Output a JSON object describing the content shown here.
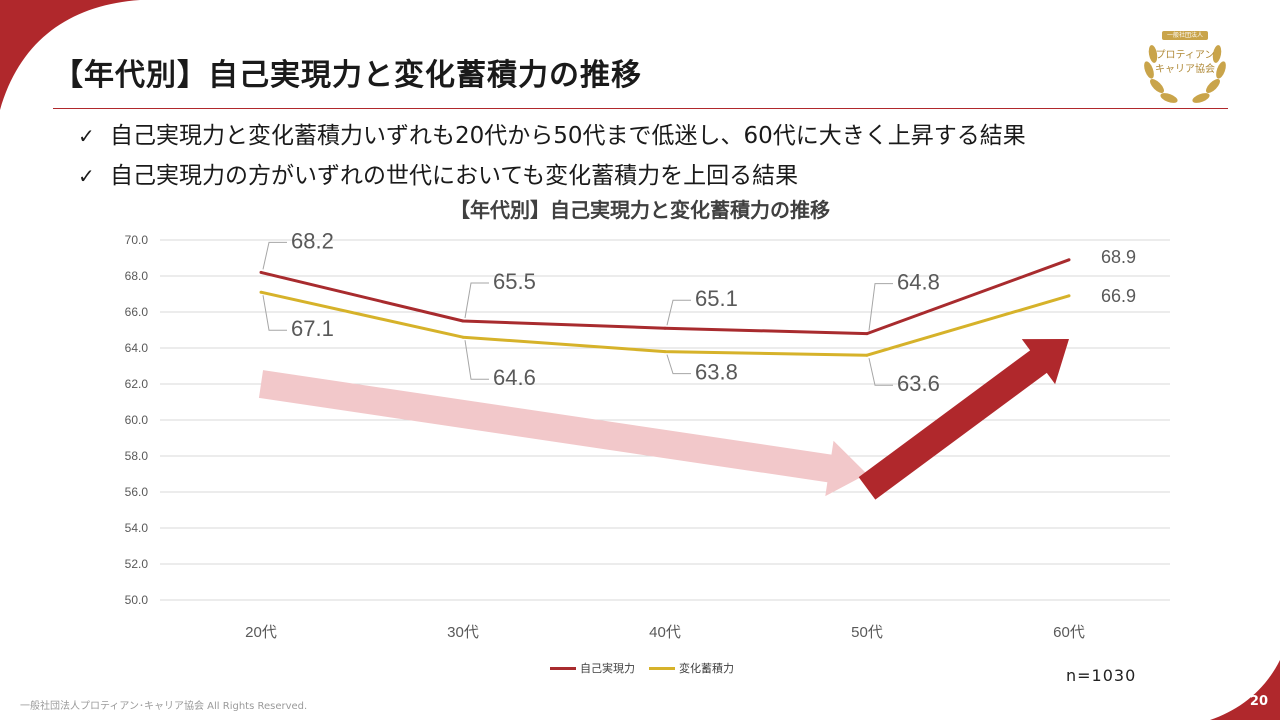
{
  "slide": {
    "title": "【年代別】自己実現力と変化蓄積力の推移",
    "bullets": [
      "自己実現力と変化蓄積力いずれも20代から50代まで低迷し、60代に大きく上昇する結果",
      "自己実現力の方がいずれの世代においても変化蓄積力を上回る結果"
    ],
    "check_icon": "check-icon",
    "badge": {
      "top": "一般社団法人",
      "line1": "プロティアン",
      "line2": "キャリア協会"
    },
    "sample_note": "n=1030",
    "footer": "一般社団法人プロティアン･キャリア協会 All Rights Reserved.",
    "page_number": "20"
  },
  "colors": {
    "accent": "#b0282c",
    "series1": "#a82b2e",
    "series2": "#d6b22a",
    "arrow_light": "#f2c8ca",
    "arrow_dark": "#b0282c"
  },
  "chart_data": {
    "type": "line",
    "title": "【年代別】自己実現力と変化蓄積力の推移",
    "categories": [
      "20代",
      "30代",
      "40代",
      "50代",
      "60代"
    ],
    "series": [
      {
        "name": "自己実現力",
        "values": [
          68.2,
          65.5,
          65.1,
          64.8,
          68.9
        ],
        "labels": [
          "68.2",
          "65.5",
          "65.1",
          "64.8",
          "68.9"
        ]
      },
      {
        "name": "変化蓄積力",
        "values": [
          67.1,
          64.6,
          63.8,
          63.6,
          66.9
        ],
        "labels": [
          "67.1",
          "64.6",
          "63.8",
          "63.6",
          "66.9"
        ]
      }
    ],
    "ylim": [
      50,
      70
    ],
    "yticks": [
      "50.0",
      "52.0",
      "54.0",
      "56.0",
      "58.0",
      "60.0",
      "62.0",
      "64.0",
      "66.0",
      "68.0",
      "70.0"
    ],
    "grid": true,
    "legend": "bottom-center",
    "annotations": [
      {
        "type": "arrow",
        "meaning": "downward trend 20代 to 50代",
        "from": [
          "20代",
          62.0
        ],
        "to": [
          "50代",
          57.0
        ]
      },
      {
        "type": "arrow",
        "meaning": "rise at 60代",
        "from": [
          "50代",
          56.2
        ],
        "to": [
          "60代",
          64.5
        ]
      }
    ]
  }
}
